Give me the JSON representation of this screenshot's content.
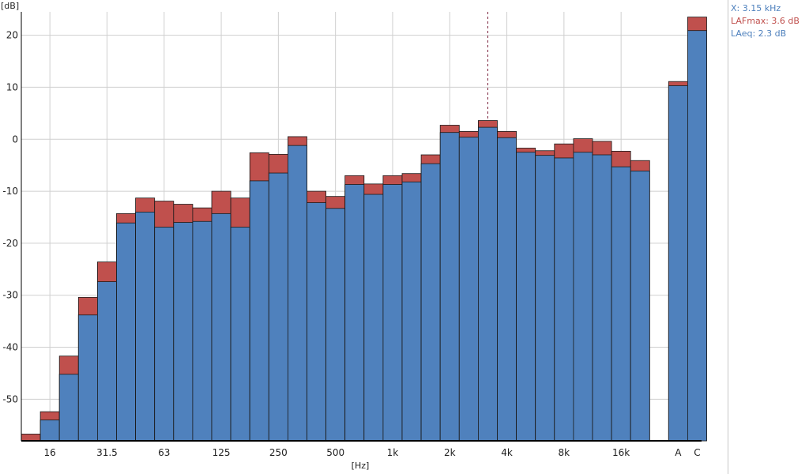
{
  "chart_data": {
    "type": "bar",
    "y_unit": "[dB]",
    "x_unit": "[Hz]",
    "ylim": [
      -58,
      24.5
    ],
    "yticks": [
      20,
      10,
      0,
      -10,
      -20,
      -30,
      -40,
      -50
    ],
    "grid": true,
    "legend_position": "right panel",
    "categories": [
      "12.5",
      "16",
      "20",
      "25",
      "31.5",
      "40",
      "50",
      "63",
      "80",
      "100",
      "125",
      "160",
      "200",
      "250",
      "315",
      "400",
      "500",
      "630",
      "800",
      "1k",
      "1.25k",
      "1.6k",
      "2k",
      "2.5k",
      "3.15k",
      "4k",
      "5k",
      "6.3k",
      "8k",
      "10k",
      "12.5k",
      "16k",
      "20k",
      "A",
      "C"
    ],
    "x_tick_labels": [
      "16",
      "31.5",
      "63",
      "125",
      "250",
      "500",
      "1k",
      "2k",
      "4k",
      "8k",
      "16k",
      "A",
      "C"
    ],
    "series": [
      {
        "name": "LAeq",
        "values": [
          -58.5,
          -54,
          -45.2,
          -33.8,
          -27.4,
          -16.1,
          -14,
          -16.9,
          -16,
          -15.8,
          -14.3,
          -16.9,
          -8,
          -6.5,
          -1.2,
          -12.2,
          -13.3,
          -8.7,
          -10.6,
          -8.7,
          -8.2,
          -4.7,
          1.3,
          0.4,
          2.3,
          0.3,
          -2.5,
          -3.1,
          -3.6,
          -2.5,
          -3,
          -5.3,
          -6.1,
          10.3,
          20.9
        ]
      },
      {
        "name": "LAFmax",
        "values": [
          -56.7,
          -52.4,
          -41.7,
          -30.4,
          -23.6,
          -14.3,
          -11.3,
          -11.9,
          -12.5,
          -13.2,
          -10,
          -11.3,
          -2.6,
          -2.9,
          0.5,
          -10,
          -11,
          -7,
          -8.6,
          -7,
          -6.6,
          -3,
          2.7,
          1.5,
          3.6,
          1.5,
          -1.7,
          -2.2,
          -0.9,
          0.1,
          -0.4,
          -2.3,
          -4.1,
          11.1,
          23.5
        ]
      }
    ],
    "colors": {
      "LAeq": "#4f81bd",
      "LAFmax": "#c0504d"
    },
    "cursor_category": "3.15k"
  },
  "readout": {
    "x": "X: 3.15 kHz",
    "lafmax": "LAFmax: 3.6 dB",
    "laeq": "LAeq: 2.3 dB",
    "colors": {
      "x": "#4f81bd",
      "lafmax": "#c0504d",
      "laeq": "#4f81bd"
    }
  }
}
